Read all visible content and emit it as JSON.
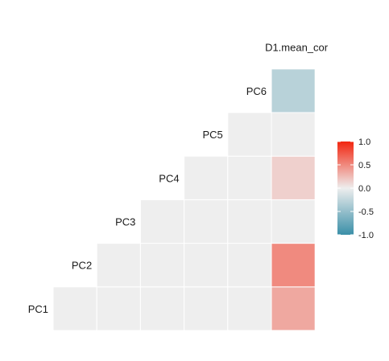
{
  "chart_data": {
    "type": "heatmap",
    "title": "",
    "variables": [
      "PC1",
      "PC2",
      "PC3",
      "PC4",
      "PC5",
      "PC6",
      "D1.mean_cor"
    ],
    "cells": [
      {
        "row": "PC1",
        "col": "PC2",
        "value": 0.0
      },
      {
        "row": "PC1",
        "col": "PC3",
        "value": 0.0
      },
      {
        "row": "PC1",
        "col": "PC4",
        "value": 0.0
      },
      {
        "row": "PC1",
        "col": "PC5",
        "value": 0.0
      },
      {
        "row": "PC1",
        "col": "PC6",
        "value": 0.0
      },
      {
        "row": "PC1",
        "col": "D1.mean_cor",
        "value": 0.35
      },
      {
        "row": "PC2",
        "col": "PC3",
        "value": 0.0
      },
      {
        "row": "PC2",
        "col": "PC4",
        "value": 0.0
      },
      {
        "row": "PC2",
        "col": "PC5",
        "value": 0.0
      },
      {
        "row": "PC2",
        "col": "PC6",
        "value": 0.0
      },
      {
        "row": "PC2",
        "col": "D1.mean_cor",
        "value": 0.5
      },
      {
        "row": "PC3",
        "col": "PC4",
        "value": 0.0
      },
      {
        "row": "PC3",
        "col": "PC5",
        "value": 0.0
      },
      {
        "row": "PC3",
        "col": "PC6",
        "value": 0.0
      },
      {
        "row": "PC3",
        "col": "D1.mean_cor",
        "value": 0.0
      },
      {
        "row": "PC4",
        "col": "PC5",
        "value": 0.0
      },
      {
        "row": "PC4",
        "col": "PC6",
        "value": 0.0
      },
      {
        "row": "PC4",
        "col": "D1.mean_cor",
        "value": 0.15
      },
      {
        "row": "PC5",
        "col": "PC6",
        "value": 0.0
      },
      {
        "row": "PC5",
        "col": "D1.mean_cor",
        "value": 0.0
      },
      {
        "row": "PC6",
        "col": "D1.mean_cor",
        "value": -0.3
      }
    ],
    "legend": {
      "placement": "right",
      "min": -1.0,
      "max": 1.0,
      "tick_labels": [
        "1.0",
        "0.5",
        "0.0",
        "-0.5",
        "-1.0"
      ],
      "tick_values": [
        1.0,
        0.5,
        0.0,
        -0.5,
        -1.0
      ],
      "colors": {
        "low": "#3a8fa8",
        "mid": "#eeeeee",
        "high": "#f2250f"
      }
    }
  }
}
